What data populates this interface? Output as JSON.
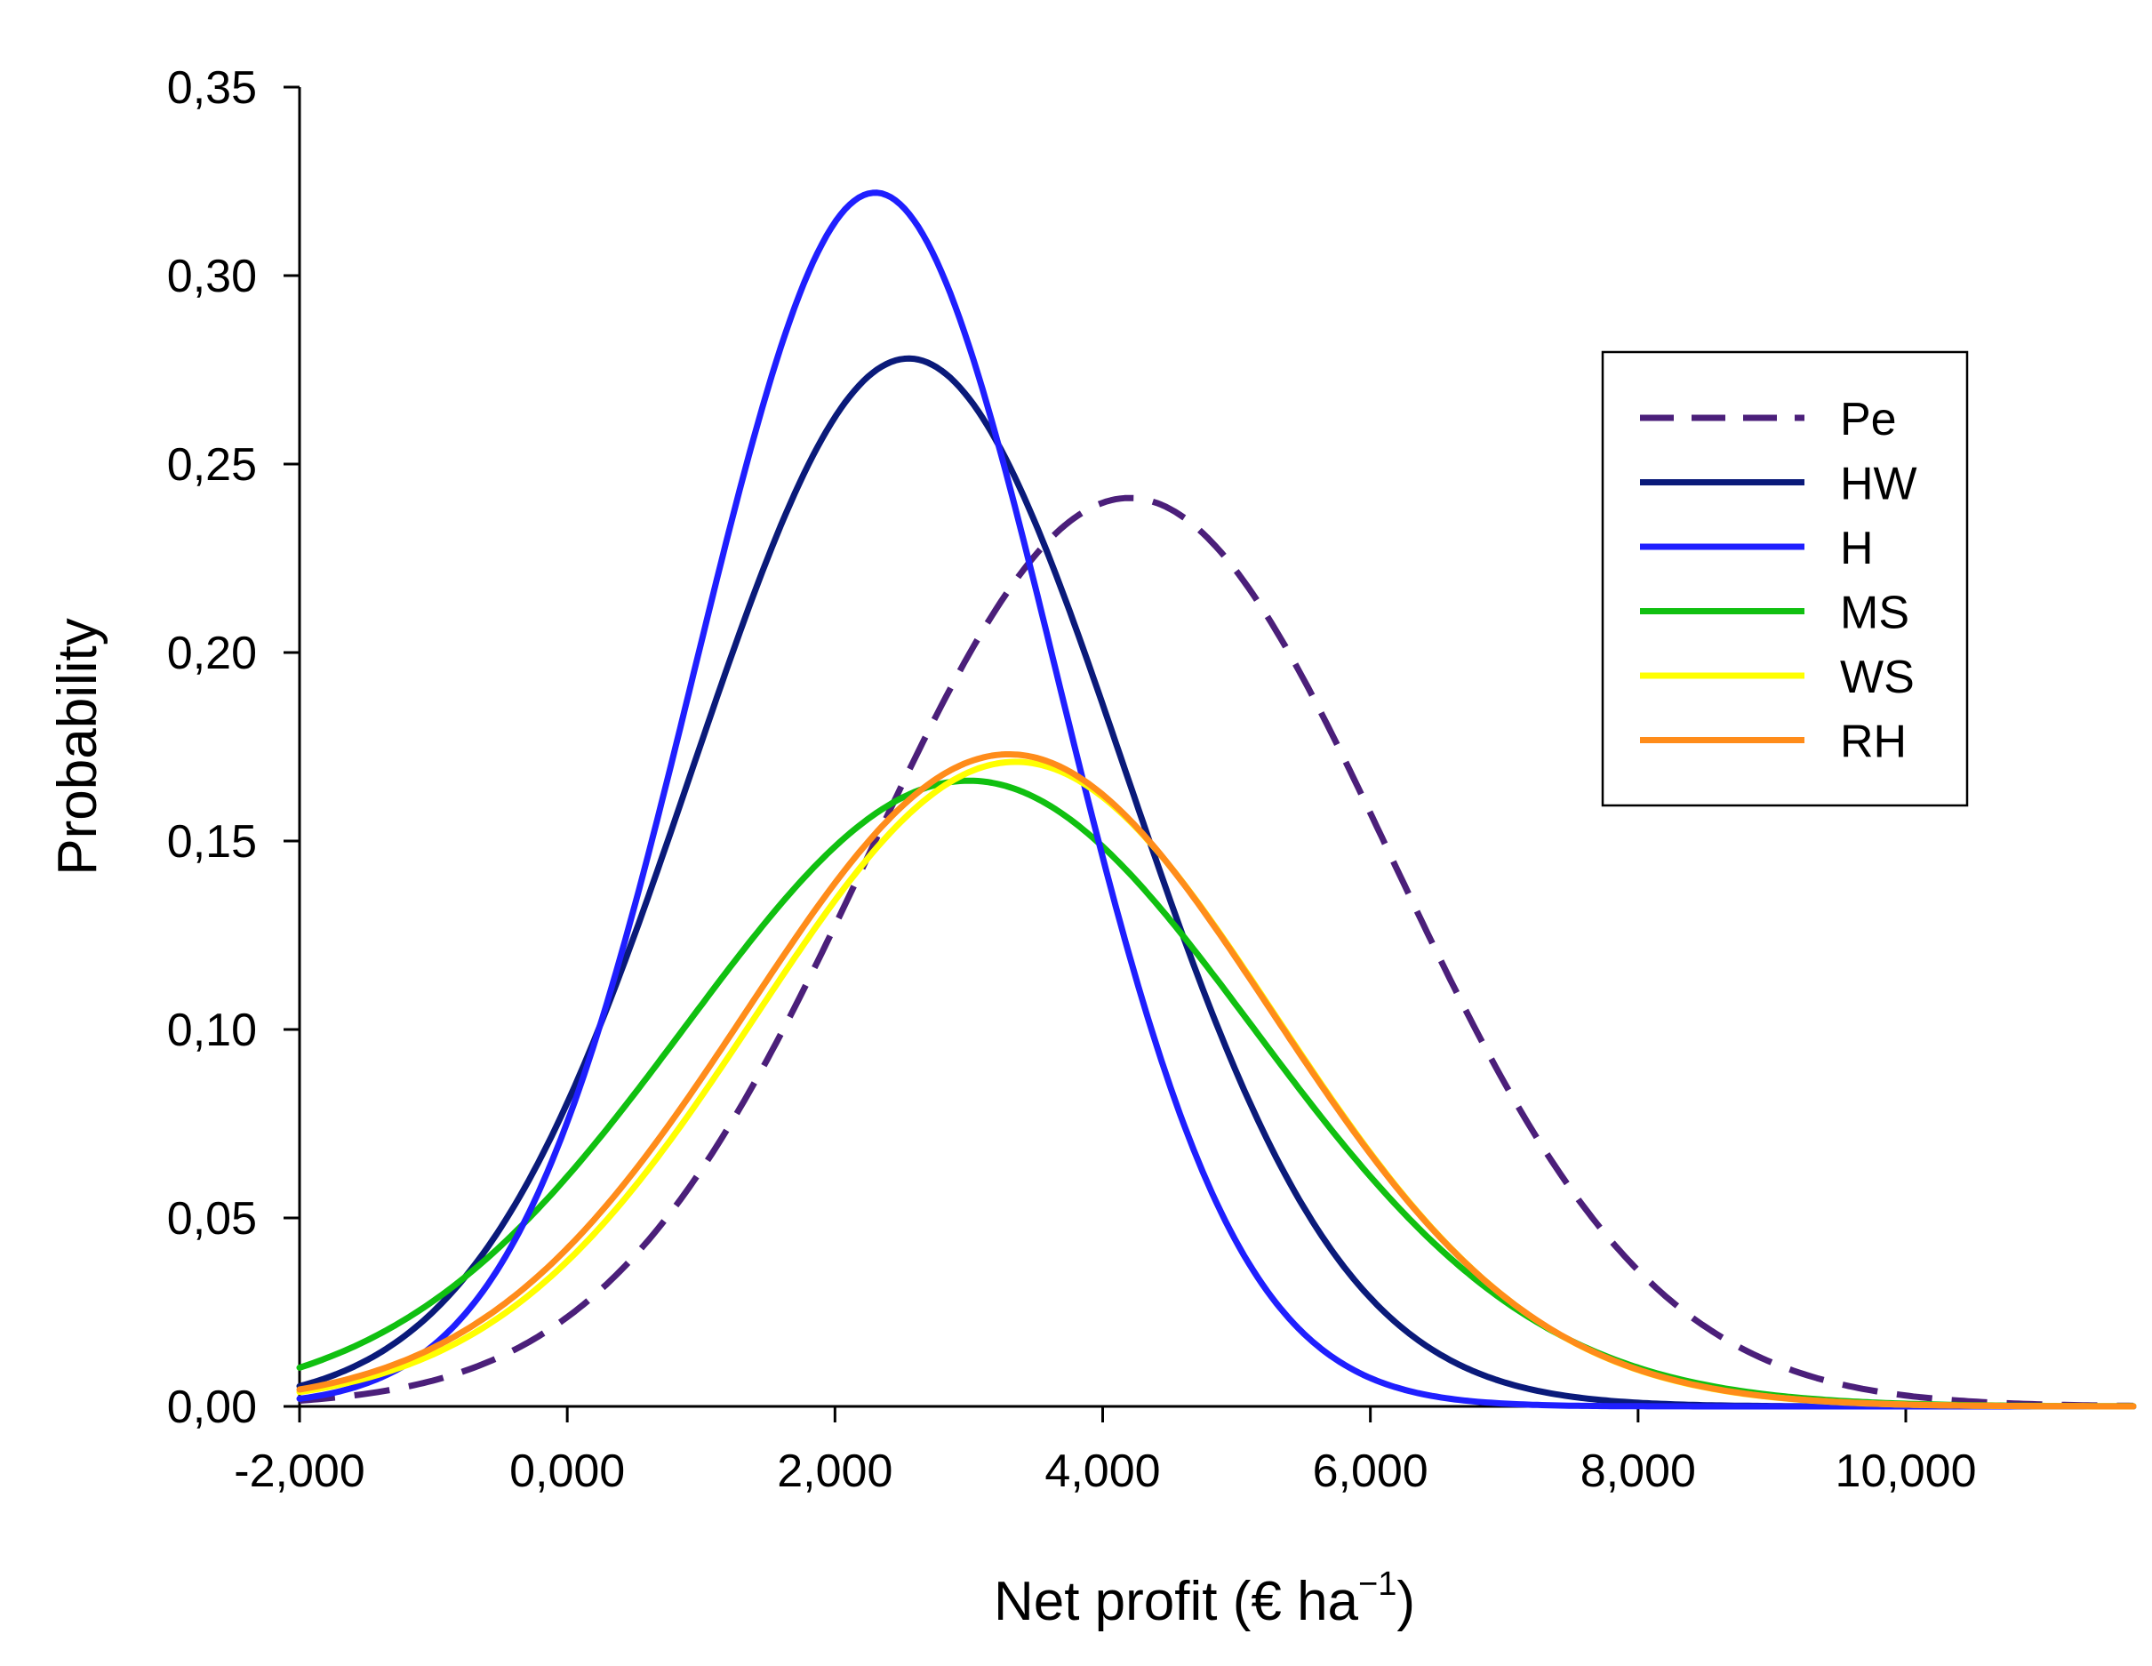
{
  "chart_data": {
    "type": "line",
    "title": "",
    "xlabel": {
      "base": "Net profit (€ ha",
      "superscript": "−1",
      "close": ")"
    },
    "ylabel": "Probability",
    "xlim": [
      -2000,
      11700
    ],
    "ylim": [
      0,
      0.35
    ],
    "x_ticks": [
      -2000,
      0,
      2000,
      4000,
      6000,
      8000,
      10000
    ],
    "x_tick_labels": [
      "-2,000",
      "0,000",
      "2,000",
      "4,000",
      "6,000",
      "8,000",
      "10,000"
    ],
    "y_ticks": [
      0,
      0.05,
      0.1,
      0.15,
      0.2,
      0.25,
      0.3,
      0.35
    ],
    "y_tick_labels": [
      "0,00",
      "0,05",
      "0,10",
      "0,15",
      "0,20",
      "0,25",
      "0,30",
      "0,35"
    ],
    "grid": false,
    "legend_position": "right",
    "series": [
      {
        "name": "Pe",
        "color": "#4b1f7a",
        "dashed": true,
        "mean": 4200,
        "sd": 1950,
        "peak": 0.241
      },
      {
        "name": "HW",
        "color": "#0a1a7a",
        "dashed": false,
        "mean": 2550,
        "sd": 1620,
        "peak": 0.278
      },
      {
        "name": "H",
        "color": "#1f1fff",
        "dashed": false,
        "mean": 2300,
        "sd": 1350,
        "peak": 0.322
      },
      {
        "name": "MS",
        "color": "#10c010",
        "dashed": false,
        "mean": 3000,
        "sd": 2120,
        "peak": 0.166
      },
      {
        "name": "WS",
        "color": "#ffff00",
        "dashed": false,
        "mean": 3350,
        "sd": 1940,
        "peak": 0.171
      },
      {
        "name": "RH",
        "color": "#ff8c1a",
        "dashed": false,
        "mean": 3300,
        "sd": 1960,
        "peak": 0.173
      }
    ]
  }
}
